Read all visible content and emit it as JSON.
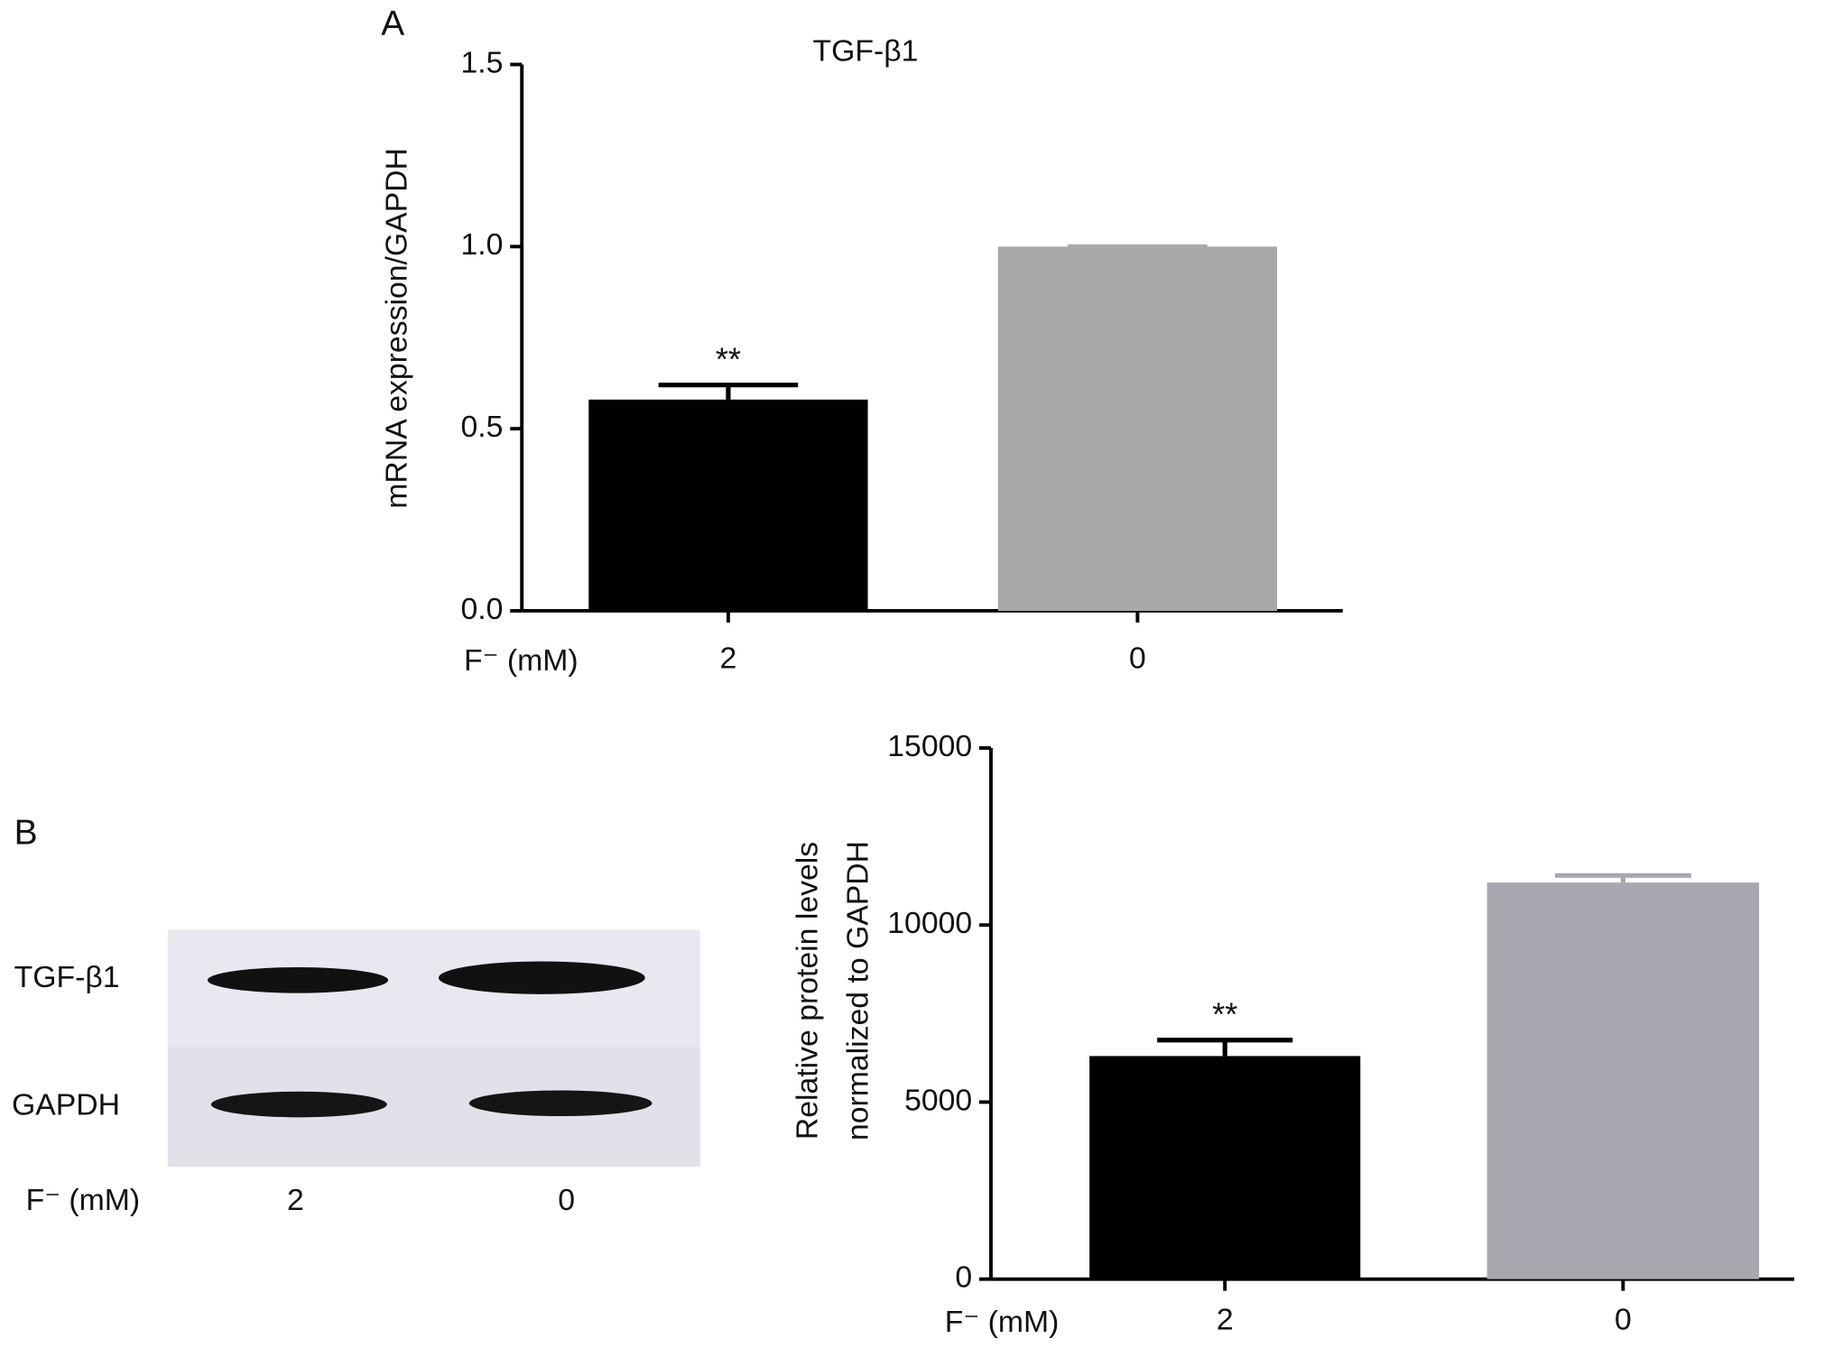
{
  "panels": [
    "A",
    "B"
  ],
  "blot": {
    "rows": [
      "TGF-β1",
      "GAPDH"
    ],
    "x_label": "F⁻ (mM)",
    "lanes": [
      "2",
      "0"
    ]
  },
  "chart_data": [
    {
      "type": "bar",
      "title": "TGF-β1",
      "y_label": [
        "mRNA expression/GAPDH"
      ],
      "x_label": "F⁻ (mM)",
      "categories": [
        "2",
        "0"
      ],
      "values": [
        0.58,
        1.0
      ],
      "errors": [
        0.04,
        0
      ],
      "colors": [
        "#000000",
        "#a9a9a9"
      ],
      "significance": [
        "**",
        null
      ],
      "ylim": [
        0,
        1.5
      ],
      "yticks": [
        {
          "value": 0,
          "label": "0.0"
        },
        0.5,
        {
          "value": 1,
          "label": "1.0"
        },
        1.5
      ]
    },
    {
      "type": "bar",
      "y_label": [
        "Relative protein levels",
        "normalized to GAPDH"
      ],
      "x_label": "F⁻ (mM)",
      "categories": [
        "2",
        "0"
      ],
      "values": [
        6300,
        11200
      ],
      "errors": [
        450,
        200
      ],
      "colors": [
        "#000000",
        "#a8a7b0"
      ],
      "significance": [
        "**",
        null
      ],
      "ylim": [
        0,
        15000
      ],
      "yticks": [
        0,
        5000,
        10000,
        15000
      ]
    }
  ]
}
